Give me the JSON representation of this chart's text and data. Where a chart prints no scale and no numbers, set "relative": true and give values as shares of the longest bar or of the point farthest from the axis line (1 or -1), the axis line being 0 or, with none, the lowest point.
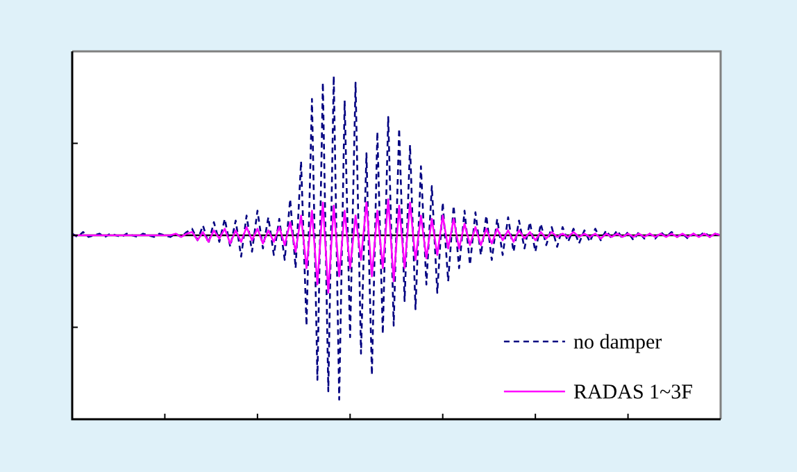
{
  "chart_data": {
    "type": "line",
    "relative": true,
    "legend": "bottom right",
    "grid": false,
    "tick_labels": false,
    "categories": [
      null,
      null,
      null,
      null,
      null,
      null,
      null,
      null,
      null,
      null,
      null,
      null,
      null,
      null,
      null,
      null,
      null,
      null,
      null,
      null,
      null,
      null,
      null,
      null,
      null,
      null,
      null,
      null,
      null,
      null,
      null,
      null,
      null,
      null,
      null,
      null,
      null,
      null,
      null,
      null,
      null,
      null,
      null,
      null,
      null,
      null,
      null,
      null,
      null,
      null,
      null,
      null,
      null,
      null,
      null,
      null,
      null,
      null,
      null,
      null,
      null,
      null,
      null,
      null,
      null,
      null,
      null,
      null,
      null,
      null,
      null,
      null,
      null,
      null,
      null,
      null,
      null,
      null,
      null,
      null,
      null,
      null,
      null,
      null,
      null,
      null,
      null,
      null,
      null,
      null,
      null,
      null,
      null,
      null,
      null,
      null,
      null,
      null,
      null,
      null,
      null,
      null,
      null,
      null,
      null,
      null,
      null,
      null,
      null,
      null,
      null,
      null,
      null,
      null,
      null,
      null,
      null,
      null,
      null,
      null
    ],
    "series": [
      {
        "name": "no damper",
        "color": "#000080",
        "line_style": "dashed",
        "values": [
          0.01,
          -0.01,
          0.02,
          -0.01,
          0,
          0.01,
          -0.01,
          0.01,
          0,
          -0.01,
          0.01,
          0,
          -0.01,
          0.01,
          0,
          -0.01,
          0.01,
          0,
          -0.01,
          0.01,
          -0.01,
          0.02,
          0.04,
          -0.03,
          0.06,
          -0.05,
          0.08,
          -0.04,
          0.1,
          -0.07,
          0.09,
          -0.13,
          0.12,
          -0.1,
          0.15,
          -0.08,
          0.11,
          -0.12,
          0.1,
          -0.15,
          0.22,
          -0.2,
          0.45,
          -0.55,
          0.83,
          -0.88,
          0.93,
          -0.95,
          0.97,
          -1,
          0.82,
          -0.62,
          0.93,
          -0.72,
          0.5,
          -0.85,
          0.63,
          -0.6,
          0.72,
          -0.55,
          0.65,
          -0.4,
          0.55,
          -0.45,
          0.42,
          -0.3,
          0.3,
          -0.35,
          0.2,
          -0.28,
          0.18,
          -0.2,
          0.15,
          -0.18,
          0.14,
          -0.12,
          0.12,
          -0.15,
          0.1,
          -0.12,
          0.11,
          -0.1,
          0.09,
          -0.08,
          0.08,
          -0.1,
          0.07,
          -0.06,
          0.05,
          -0.07,
          0.05,
          -0.04,
          0.04,
          -0.05,
          0.03,
          -0.04,
          0.04,
          -0.03,
          0.03,
          -0.02,
          0.03,
          -0.02,
          0.02,
          -0.03,
          0.02,
          -0.02,
          0.01,
          -0.02,
          0.02,
          -0.01,
          0.02,
          -0.01,
          0.01,
          -0.02,
          0.01,
          -0.01,
          0.02,
          -0.01,
          0.01,
          0
        ]
      },
      {
        "name": "RADAS 1~3F",
        "color": "#ff00ff",
        "line_style": "solid",
        "values": [
          0,
          0,
          0,
          0,
          0,
          0,
          0,
          0,
          0,
          0,
          0,
          0,
          0,
          0,
          0,
          0,
          0,
          0,
          0,
          0.01,
          -0.01,
          0.01,
          0.02,
          -0.03,
          0.02,
          -0.04,
          0.03,
          -0.02,
          0.04,
          -0.05,
          0.03,
          -0.04,
          0.05,
          -0.03,
          0.04,
          -0.05,
          0.03,
          -0.04,
          0.05,
          -0.06,
          0.08,
          -0.1,
          0.12,
          -0.2,
          0.15,
          -0.3,
          0.2,
          -0.35,
          0.18,
          -0.25,
          0.15,
          -0.2,
          0.12,
          -0.15,
          0.2,
          -0.25,
          0.15,
          -0.2,
          0.22,
          -0.28,
          0.18,
          -0.2,
          0.2,
          -0.15,
          0.12,
          -0.14,
          0.1,
          -0.12,
          0.12,
          -0.08,
          0.1,
          -0.08,
          0.07,
          -0.06,
          0.05,
          -0.06,
          0.04,
          -0.05,
          0.04,
          -0.03,
          0.03,
          -0.04,
          0.03,
          -0.02,
          0.02,
          -0.03,
          0.02,
          -0.02,
          0.02,
          -0.01,
          0.01,
          -0.01,
          0.02,
          -0.01,
          0.01,
          -0.01,
          0.01,
          -0.02,
          0.01,
          -0.01,
          0.01,
          -0.01,
          0.01,
          -0.01,
          0.01,
          -0.01,
          0.01,
          -0.01,
          0.01,
          -0.01,
          0.01,
          -0.01,
          0.01,
          -0.01,
          0.01,
          -0.01,
          0.01,
          -0.01,
          0.01,
          0
        ]
      }
    ]
  }
}
